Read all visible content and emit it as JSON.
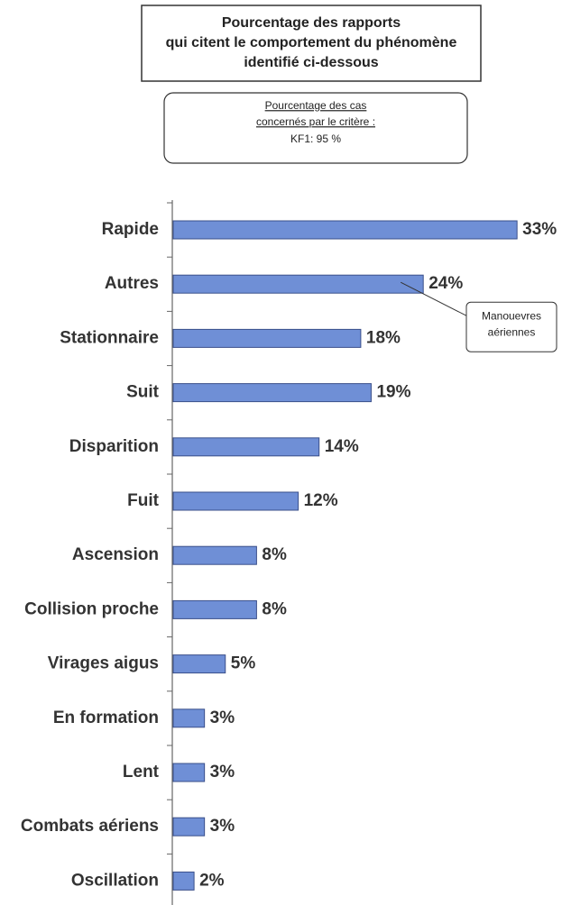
{
  "chart_data": {
    "type": "bar",
    "orientation": "horizontal",
    "title": [
      "Pourcentage des rapports",
      "qui citent le comportement du phénomène",
      "identifié ci-dessous"
    ],
    "criterion": [
      "Pourcentage des cas",
      "concernés par le critère :",
      "KF1: 95 %"
    ],
    "annotation": {
      "lines": [
        "Manouevres",
        "aériennes"
      ],
      "category": 1
    },
    "categories": [
      "Rapide",
      "Autres",
      "Stationnaire",
      "Suit",
      "Disparition",
      "Fuit",
      "Ascension",
      "Collision proche",
      "Virages aigus",
      "En formation",
      "Lent",
      "Combats aériens",
      "Oscillation"
    ],
    "values": [
      33,
      24,
      18,
      19,
      14,
      12,
      8,
      8,
      5,
      3,
      3,
      3,
      2
    ],
    "value_labels": [
      "33%",
      "24%",
      "18%",
      "19%",
      "14%",
      "12%",
      "8%",
      "8%",
      "5%",
      "3%",
      "3%",
      "3%",
      "2%"
    ],
    "color": "#6f8fd6"
  }
}
